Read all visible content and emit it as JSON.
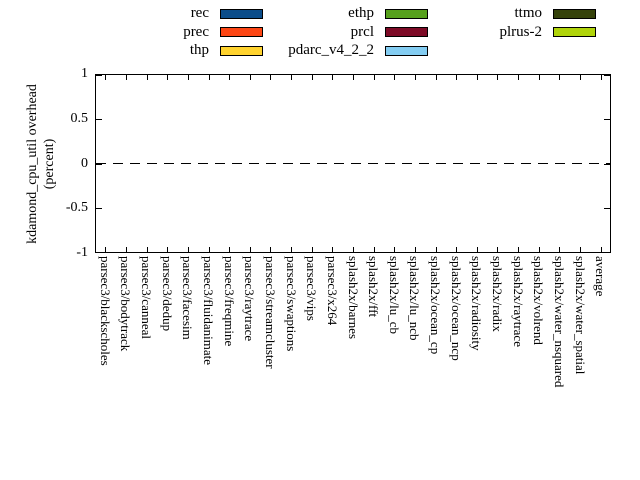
{
  "legend": {
    "columns": [
      {
        "entries": [
          {
            "label": "rec",
            "color": "#0b4d8a"
          },
          {
            "label": "prec",
            "color": "#fd4614"
          },
          {
            "label": "thp",
            "color": "#ffd32f"
          }
        ]
      },
      {
        "entries": [
          {
            "label": "ethp",
            "color": "#56a01c"
          },
          {
            "label": "prcl",
            "color": "#7d0a26"
          },
          {
            "label": "pdarc_v4_2_2",
            "color": "#84cdf2"
          }
        ]
      },
      {
        "entries": [
          {
            "label": "ttmo",
            "color": "#35420a"
          },
          {
            "label": "plrus-2",
            "color": "#b0d40a"
          }
        ]
      }
    ]
  },
  "axes": {
    "ylabel_line1": "kdamond_cpu_util overhead",
    "ylabel_line2": "(percent)",
    "ytick_labels": [
      "1",
      "0.5",
      "0",
      "-0.5",
      "-1"
    ]
  },
  "chart_data": {
    "type": "bar",
    "title": "",
    "xlabel": "",
    "ylabel": "kdamond_cpu_util overhead (percent)",
    "ylim": [
      -1,
      1
    ],
    "yticks": [
      1,
      0.5,
      0,
      -0.5,
      -1
    ],
    "grid": false,
    "zero_line": "dashed",
    "legend_position": "top-center",
    "categories": [
      "parsec3/blackscholes",
      "parsec3/bodytrack",
      "parsec3/canneal",
      "parsec3/dedup",
      "parsec3/facesim",
      "parsec3/fluidanimate",
      "parsec3/freqmine",
      "parsec3/raytrace",
      "parsec3/streamcluster",
      "parsec3/swaptions",
      "parsec3/vips",
      "parsec3/x264",
      "splash2x/barnes",
      "splash2x/fft",
      "splash2x/lu_cb",
      "splash2x/lu_ncb",
      "splash2x/ocean_cp",
      "splash2x/ocean_ncp",
      "splash2x/radiosity",
      "splash2x/radix",
      "splash2x/raytrace",
      "splash2x/volrend",
      "splash2x/water_nsquared",
      "splash2x/water_spatial",
      "average"
    ],
    "series": [
      {
        "name": "rec",
        "color": "#0b4d8a",
        "values": [
          0,
          0,
          0,
          0,
          0,
          0,
          0,
          0,
          0,
          0,
          0,
          0,
          0,
          0,
          0,
          0,
          0,
          0,
          0,
          0,
          0,
          0,
          0,
          0,
          0
        ]
      },
      {
        "name": "prec",
        "color": "#fd4614",
        "values": [
          0,
          0,
          0,
          0,
          0,
          0,
          0,
          0,
          0,
          0,
          0,
          0,
          0,
          0,
          0,
          0,
          0,
          0,
          0,
          0,
          0,
          0,
          0,
          0,
          0
        ]
      },
      {
        "name": "thp",
        "color": "#ffd32f",
        "values": [
          0,
          0,
          0,
          0,
          0,
          0,
          0,
          0,
          0,
          0,
          0,
          0,
          0,
          0,
          0,
          0,
          0,
          0,
          0,
          0,
          0,
          0,
          0,
          0,
          0
        ]
      },
      {
        "name": "ethp",
        "color": "#56a01c",
        "values": [
          0,
          0,
          0,
          0,
          0,
          0,
          0,
          0,
          0,
          0,
          0,
          0,
          0,
          0,
          0,
          0,
          0,
          0,
          0,
          0,
          0,
          0,
          0,
          0,
          0
        ]
      },
      {
        "name": "prcl",
        "color": "#7d0a26",
        "values": [
          0,
          0,
          0,
          0,
          0,
          0,
          0,
          0,
          0,
          0,
          0,
          0,
          0,
          0,
          0,
          0,
          0,
          0,
          0,
          0,
          0,
          0,
          0,
          0,
          0
        ]
      },
      {
        "name": "pdarc_v4_2_2",
        "color": "#84cdf2",
        "values": [
          0,
          0,
          0,
          0,
          0,
          0,
          0,
          0,
          0,
          0,
          0,
          0,
          0,
          0,
          0,
          0,
          0,
          0,
          0,
          0,
          0,
          0,
          0,
          0,
          0
        ]
      },
      {
        "name": "ttmo",
        "color": "#35420a",
        "values": [
          0,
          0,
          0,
          0,
          0,
          0,
          0,
          0,
          0,
          0,
          0,
          0,
          0,
          0,
          0,
          0,
          0,
          0,
          0,
          0,
          0,
          0,
          0,
          0,
          0
        ]
      },
      {
        "name": "plrus-2",
        "color": "#b0d40a",
        "values": [
          0,
          0,
          0,
          0,
          0,
          0,
          0,
          0,
          0,
          0,
          0,
          0,
          0,
          0,
          0,
          0,
          0,
          0,
          0,
          0,
          0,
          0,
          0,
          0,
          0
        ]
      }
    ]
  }
}
